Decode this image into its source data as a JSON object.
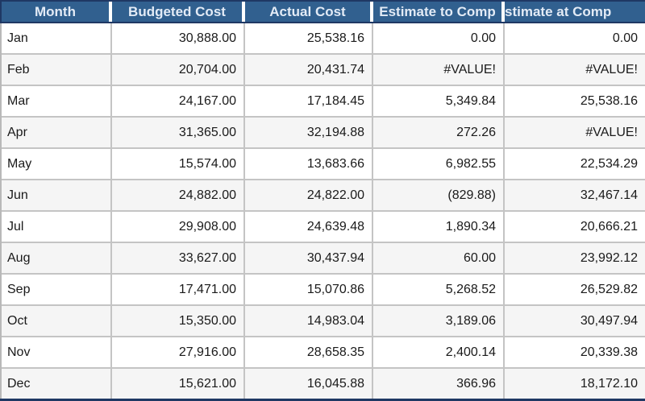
{
  "table": {
    "columns": [
      {
        "key": "month",
        "label": "Month"
      },
      {
        "key": "budgeted",
        "label": "Budgeted Cost"
      },
      {
        "key": "actual",
        "label": "Actual Cost"
      },
      {
        "key": "etc",
        "label": "Estimate to Comp"
      },
      {
        "key": "eac",
        "label": "stimate at Comp"
      }
    ],
    "rows": [
      {
        "month": "Jan",
        "budgeted": "30,888.00",
        "actual": "25,538.16",
        "etc": "0.00",
        "eac": "0.00"
      },
      {
        "month": "Feb",
        "budgeted": "20,704.00",
        "actual": "20,431.74",
        "etc": "#VALUE!",
        "eac": "#VALUE!"
      },
      {
        "month": "Mar",
        "budgeted": "24,167.00",
        "actual": "17,184.45",
        "etc": "5,349.84",
        "eac": "25,538.16"
      },
      {
        "month": "Apr",
        "budgeted": "31,365.00",
        "actual": "32,194.88",
        "etc": "272.26",
        "eac": "#VALUE!"
      },
      {
        "month": "May",
        "budgeted": "15,574.00",
        "actual": "13,683.66",
        "etc": "6,982.55",
        "eac": "22,534.29"
      },
      {
        "month": "Jun",
        "budgeted": "24,882.00",
        "actual": "24,822.00",
        "etc": "(829.88)",
        "eac": "32,467.14"
      },
      {
        "month": "Jul",
        "budgeted": "29,908.00",
        "actual": "24,639.48",
        "etc": "1,890.34",
        "eac": "20,666.21"
      },
      {
        "month": "Aug",
        "budgeted": "33,627.00",
        "actual": "30,437.94",
        "etc": "60.00",
        "eac": "23,992.12"
      },
      {
        "month": "Sep",
        "budgeted": "17,471.00",
        "actual": "15,070.86",
        "etc": "5,268.52",
        "eac": "26,529.82"
      },
      {
        "month": "Oct",
        "budgeted": "15,350.00",
        "actual": "14,983.04",
        "etc": "3,189.06",
        "eac": "30,497.94"
      },
      {
        "month": "Nov",
        "budgeted": "27,916.00",
        "actual": "28,658.35",
        "etc": "2,400.14",
        "eac": "20,339.38"
      },
      {
        "month": "Dec",
        "budgeted": "15,621.00",
        "actual": "16,045.88",
        "etc": "366.96",
        "eac": "18,172.10"
      }
    ],
    "colors": {
      "header_bg": "#31608f",
      "header_text": "#e3ebf6",
      "navy_border": "#1f3864",
      "row_alt": "#f5f5f5",
      "grid_line": "#c4c4c4",
      "text": "#1a1a1a"
    }
  }
}
